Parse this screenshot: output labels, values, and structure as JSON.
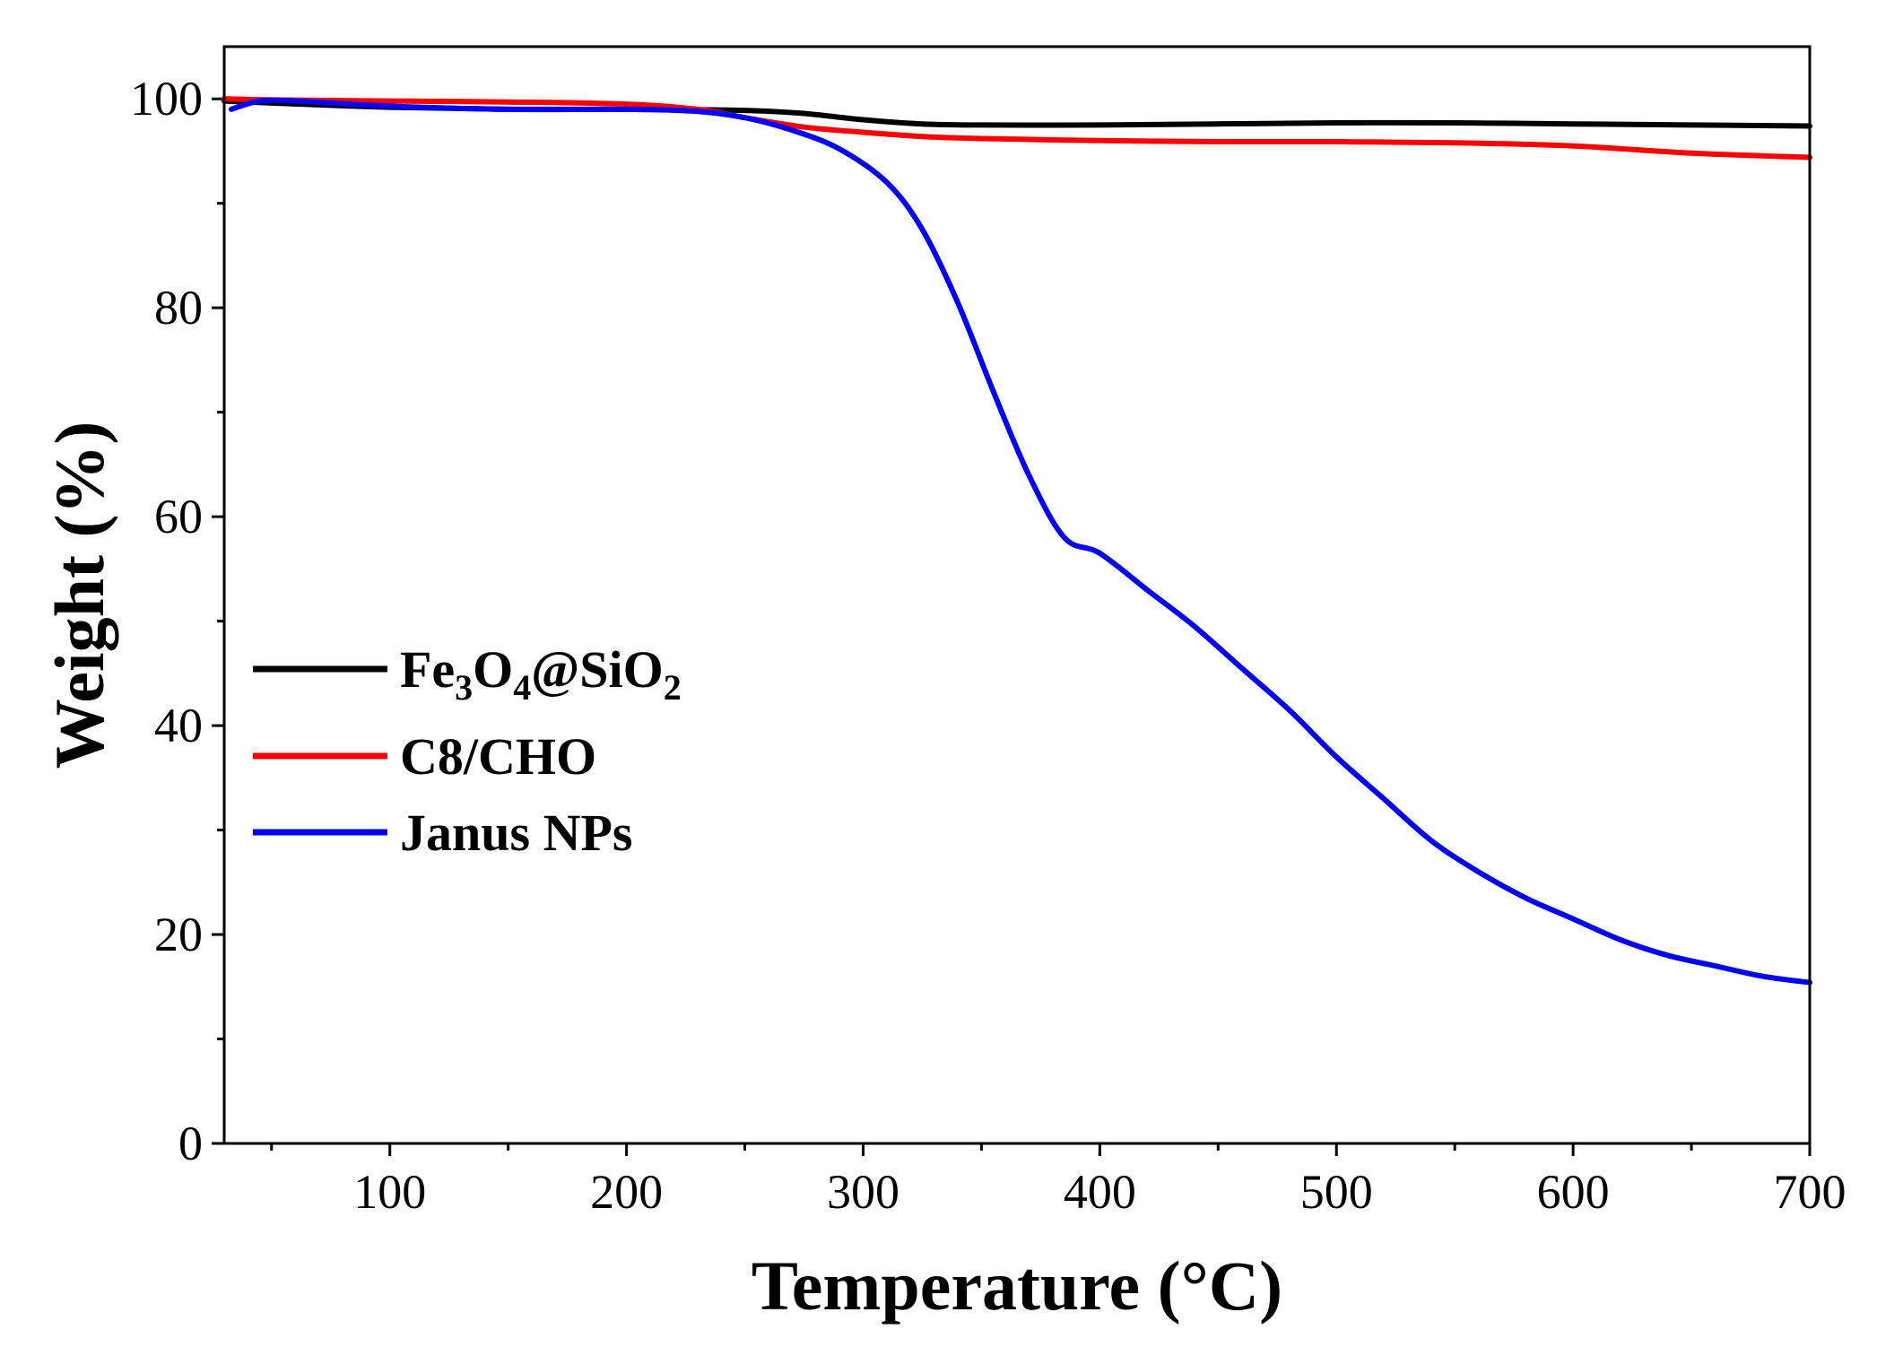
{
  "chart_data": {
    "type": "line",
    "title": "",
    "xlabel": "Temperature (°C)",
    "ylabel": "Weight (%)",
    "xlim": [
      30,
      700
    ],
    "ylim": [
      0,
      105
    ],
    "xticks": [
      100,
      200,
      300,
      400,
      500,
      600,
      700
    ],
    "yticks": [
      0,
      20,
      40,
      60,
      80,
      100
    ],
    "xtick_labels": [
      "100",
      "200",
      "300",
      "400",
      "500",
      "600",
      "700"
    ],
    "ytick_labels": [
      "0",
      "20",
      "40",
      "60",
      "80",
      "100"
    ],
    "x_minor_step": 50,
    "y_minor_step": 10,
    "grid": false,
    "legend_position": "middle-left",
    "legend": [
      {
        "name": "Fe3O4@SiO2",
        "display": {
          "base": "Fe",
          "sub1": "3",
          "mid": "O",
          "sub2": "4",
          "tail": "@SiO",
          "sub3": "2"
        }
      },
      {
        "name": "C8/CHO"
      },
      {
        "name": "Janus NPs"
      }
    ],
    "series": [
      {
        "name": "Fe3O4@SiO2",
        "color": "#000000",
        "x": [
          30,
          50,
          100,
          150,
          200,
          250,
          275,
          300,
          325,
          350,
          400,
          450,
          500,
          550,
          600,
          650,
          700
        ],
        "y": [
          99.8,
          99.6,
          99.2,
          99.0,
          99.0,
          98.9,
          98.6,
          98.0,
          97.6,
          97.5,
          97.5,
          97.6,
          97.7,
          97.7,
          97.6,
          97.5,
          97.4
        ]
      },
      {
        "name": "C8/CHO",
        "color": "#ff0000",
        "x": [
          30,
          50,
          100,
          150,
          200,
          230,
          250,
          275,
          300,
          325,
          350,
          400,
          450,
          500,
          550,
          600,
          650,
          700
        ],
        "y": [
          100.0,
          99.9,
          99.8,
          99.7,
          99.5,
          99.0,
          98.2,
          97.3,
          96.8,
          96.4,
          96.2,
          96.0,
          95.9,
          95.9,
          95.8,
          95.5,
          94.8,
          94.4
        ]
      },
      {
        "name": "Janus NPs",
        "color": "#0000ff",
        "x": [
          33,
          45,
          60,
          100,
          150,
          200,
          230,
          250,
          270,
          290,
          310,
          325,
          340,
          355,
          370,
          385,
          400,
          420,
          440,
          460,
          480,
          500,
          520,
          540,
          560,
          580,
          600,
          620,
          640,
          660,
          680,
          700
        ],
        "y": [
          99.0,
          99.8,
          99.8,
          99.3,
          99.0,
          99.0,
          98.8,
          98.2,
          97.0,
          95.2,
          92.0,
          87.5,
          80.5,
          72.0,
          64.0,
          58.0,
          56.5,
          53.0,
          49.5,
          45.5,
          41.5,
          37.0,
          33.0,
          29.0,
          26.0,
          23.5,
          21.5,
          19.5,
          18.0,
          17.0,
          16.0,
          15.4
        ]
      }
    ]
  }
}
